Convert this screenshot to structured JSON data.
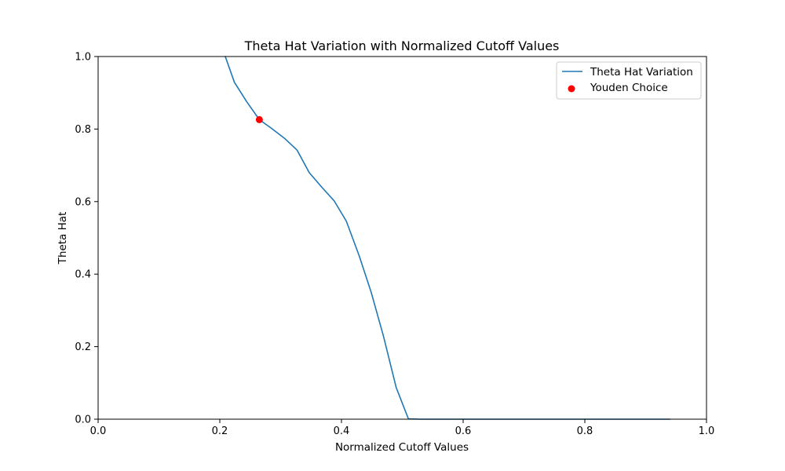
{
  "chart_data": {
    "type": "line",
    "title": "Theta Hat Variation with Normalized Cutoff Values",
    "xlabel": "Normalized Cutoff Values",
    "ylabel": "Theta Hat",
    "xlim": [
      0.0,
      1.0
    ],
    "ylim": [
      0.0,
      1.0
    ],
    "xticks": [
      0.0,
      0.2,
      0.4,
      0.6,
      0.8,
      1.0
    ],
    "yticks": [
      0.0,
      0.2,
      0.4,
      0.6,
      0.8,
      1.0
    ],
    "xtick_labels": [
      "0.0",
      "0.2",
      "0.4",
      "0.6",
      "0.8",
      "1.0"
    ],
    "ytick_labels": [
      "0.0",
      "0.2",
      "0.4",
      "0.6",
      "0.8",
      "1.0"
    ],
    "grid": false,
    "legend_position": "top-right",
    "series": [
      {
        "name": "Theta Hat Variation",
        "color": "#1f77b4",
        "marker": "line",
        "x": [
          0.209,
          0.224,
          0.244,
          0.265,
          0.285,
          0.306,
          0.327,
          0.347,
          0.367,
          0.388,
          0.408,
          0.429,
          0.449,
          0.469,
          0.49,
          0.51,
          0.53,
          0.6,
          0.7,
          0.8,
          0.94
        ],
        "y": [
          1.0,
          0.929,
          0.876,
          0.826,
          0.802,
          0.775,
          0.742,
          0.68,
          0.641,
          0.602,
          0.546,
          0.451,
          0.349,
          0.229,
          0.087,
          0.001,
          0.0,
          0.0,
          0.0,
          0.0,
          0.0
        ]
      },
      {
        "name": "Youden Choice",
        "color": "#ff0000",
        "marker": "point",
        "x": [
          0.265
        ],
        "y": [
          0.826
        ]
      }
    ]
  }
}
